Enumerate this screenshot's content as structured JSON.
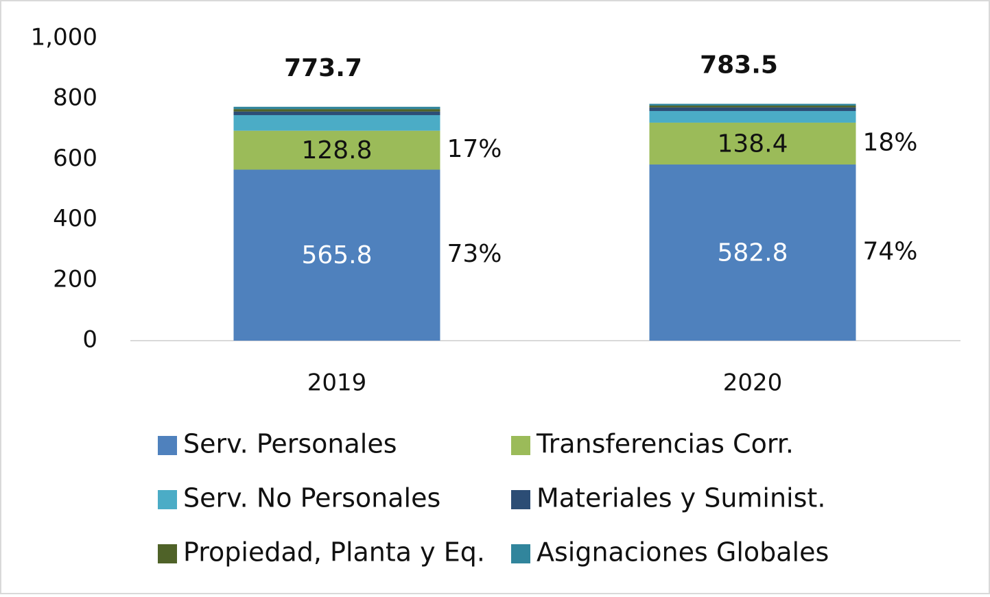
{
  "chart_data": {
    "type": "stacked_bar",
    "categories": [
      "2019",
      "2020"
    ],
    "totals": [
      773.7,
      783.5
    ],
    "ylim": [
      0,
      1000
    ],
    "yticks": [
      0,
      200,
      400,
      600,
      800,
      {
        "value": 1000,
        "label": "1,000"
      }
    ],
    "series": [
      {
        "name": "Serv. Personales",
        "color": "#4f81bd",
        "values": [
          565.8,
          582.8
        ],
        "show_values": true,
        "label_color": "#ffffff",
        "percent_labels": [
          "73%",
          "74%"
        ]
      },
      {
        "name": "Transferencias Corr.",
        "color": "#9bbb59",
        "values": [
          128.8,
          138.4
        ],
        "show_values": true,
        "label_color": "#111111",
        "percent_labels": [
          "17%",
          "18%"
        ]
      },
      {
        "name": "Serv. No Personales",
        "color": "#4bacc6",
        "values": [
          51.5,
          38.5
        ]
      },
      {
        "name": "Materiales y Suminist.",
        "color": "#2c4d75",
        "values": [
          12,
          12
        ]
      },
      {
        "name": "Propiedad, Planta y Eq.",
        "color": "#4f6228",
        "values": [
          8,
          6
        ]
      },
      {
        "name": "Asignaciones Globales",
        "color": "#31859c",
        "values": [
          7.6,
          5.8
        ]
      }
    ]
  }
}
